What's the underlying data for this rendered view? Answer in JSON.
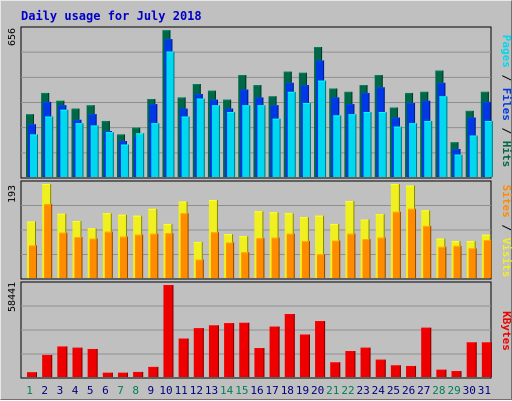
{
  "title": "Daily usage for July 2018",
  "colors": {
    "hits": "#006848",
    "files": "#0038e8",
    "pages": "#00d8f0",
    "visits": "#f0f020",
    "sites": "#ff8c00",
    "kbytes": "#ee0000",
    "weekend_label": "#00805a",
    "weekday_label": "#000080",
    "title": "#0000c8"
  },
  "chart_data": [
    {
      "type": "bar",
      "name": "hits-files-pages",
      "ymax_label": "656",
      "ylim": [
        0,
        656
      ],
      "legend": [
        "Pages",
        "/",
        "Files",
        "/",
        "Hits"
      ],
      "categories": [
        "1",
        "2",
        "3",
        "4",
        "5",
        "6",
        "7",
        "8",
        "9",
        "10",
        "11",
        "12",
        "13",
        "14",
        "15",
        "16",
        "17",
        "18",
        "19",
        "20",
        "21",
        "22",
        "23",
        "24",
        "25",
        "26",
        "27",
        "28",
        "29",
        "30",
        "31"
      ],
      "series": [
        {
          "name": "Hits",
          "values": [
            280,
            375,
            340,
            305,
            320,
            250,
            190,
            220,
            348,
            655,
            355,
            415,
            385,
            345,
            455,
            410,
            360,
            470,
            465,
            580,
            395,
            380,
            410,
            455,
            310,
            375,
            380,
            475,
            155,
            295,
            380
          ]
        },
        {
          "name": "Files",
          "values": [
            235,
            335,
            320,
            255,
            280,
            205,
            160,
            180,
            325,
            615,
            305,
            370,
            345,
            305,
            390,
            355,
            320,
            420,
            410,
            520,
            355,
            325,
            375,
            400,
            265,
            330,
            340,
            420,
            125,
            265,
            335
          ]
        },
        {
          "name": "Pages",
          "values": [
            190,
            270,
            300,
            240,
            230,
            200,
            145,
            195,
            240,
            560,
            270,
            350,
            320,
            290,
            320,
            320,
            260,
            380,
            330,
            430,
            275,
            280,
            290,
            290,
            225,
            240,
            250,
            360,
            100,
            185,
            250
          ]
        }
      ]
    },
    {
      "type": "bar",
      "name": "visits-sites",
      "ymax_label": "193",
      "ylim": [
        0,
        193
      ],
      "legend": [
        "Sites",
        "/",
        "Visits"
      ],
      "categories": [
        "1",
        "2",
        "3",
        "4",
        "5",
        "6",
        "7",
        "8",
        "9",
        "10",
        "11",
        "12",
        "13",
        "14",
        "15",
        "16",
        "17",
        "18",
        "19",
        "20",
        "21",
        "22",
        "23",
        "24",
        "25",
        "26",
        "27",
        "28",
        "29",
        "30",
        "31"
      ],
      "series": [
        {
          "name": "Visits",
          "values": [
            116,
            193,
            132,
            117,
            102,
            133,
            130,
            128,
            142,
            111,
            157,
            74,
            160,
            90,
            86,
            137,
            135,
            133,
            125,
            128,
            111,
            158,
            120,
            131,
            193,
            190,
            139,
            81,
            76,
            76,
            89
          ]
        },
        {
          "name": "Sites",
          "values": [
            67,
            152,
            93,
            84,
            81,
            95,
            85,
            89,
            91,
            92,
            133,
            38,
            94,
            73,
            53,
            82,
            83,
            91,
            76,
            49,
            77,
            91,
            80,
            83,
            136,
            142,
            107,
            64,
            66,
            61,
            78
          ]
        }
      ]
    },
    {
      "type": "bar",
      "name": "kbytes",
      "ymax_label": "58441",
      "ylim": [
        0,
        58441
      ],
      "legend": [
        "KBytes"
      ],
      "categories": [
        "1",
        "2",
        "3",
        "4",
        "5",
        "6",
        "7",
        "8",
        "9",
        "10",
        "11",
        "12",
        "13",
        "14",
        "15",
        "16",
        "17",
        "18",
        "19",
        "20",
        "21",
        "22",
        "23",
        "24",
        "25",
        "26",
        "27",
        "28",
        "29",
        "30",
        "31"
      ],
      "series": [
        {
          "name": "KBytes",
          "values": [
            3000,
            14000,
            19400,
            18600,
            17800,
            2700,
            2700,
            3200,
            6400,
            58441,
            24400,
            31000,
            32800,
            34200,
            34400,
            18400,
            32000,
            40000,
            27000,
            35500,
            9300,
            16500,
            18600,
            11000,
            7400,
            7000,
            31300,
            4600,
            3800,
            22000,
            22000
          ]
        }
      ]
    }
  ],
  "x_axis": {
    "labels": [
      "1",
      "2",
      "3",
      "4",
      "5",
      "6",
      "7",
      "8",
      "9",
      "10",
      "11",
      "12",
      "13",
      "14",
      "15",
      "16",
      "17",
      "18",
      "19",
      "20",
      "21",
      "22",
      "23",
      "24",
      "25",
      "26",
      "27",
      "28",
      "29",
      "30",
      "31"
    ],
    "weekend": [
      1,
      7,
      8,
      14,
      15,
      21,
      22,
      28,
      29
    ]
  }
}
